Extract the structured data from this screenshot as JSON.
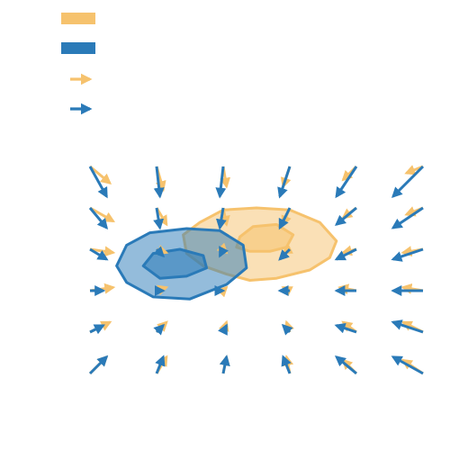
{
  "chart_data": {
    "type": "quiver",
    "title": "",
    "xlabel": "",
    "ylabel": "",
    "grid": false,
    "axes_visible": false,
    "xlim": [
      0,
      5
    ],
    "ylim": [
      0,
      5
    ],
    "legend": {
      "placement": "top-left",
      "entries": [
        {
          "kind": "patch",
          "color": "#f6c26d",
          "label": ""
        },
        {
          "kind": "patch",
          "color": "#2a7ab8",
          "label": ""
        },
        {
          "kind": "arrow",
          "color": "#f6c26d",
          "label": ""
        },
        {
          "kind": "arrow",
          "color": "#2a7ab8",
          "label": ""
        }
      ]
    },
    "grid_points": {
      "x": [
        0,
        1,
        2,
        3,
        4,
        5
      ],
      "y": [
        0,
        1,
        2,
        3,
        4,
        5
      ]
    },
    "series": [
      {
        "color": "#f6c26d",
        "kind": "quiver",
        "vectors": [
          {
            "x": 0,
            "y": 5,
            "u": 0.3,
            "v": -0.25
          },
          {
            "x": 1,
            "y": 5,
            "u": 0.1,
            "v": -0.35
          },
          {
            "x": 2,
            "y": 5,
            "u": 0.05,
            "v": -0.3
          },
          {
            "x": 3,
            "y": 5,
            "u": -0.1,
            "v": -0.3
          },
          {
            "x": 4,
            "y": 5,
            "u": -0.2,
            "v": -0.2
          },
          {
            "x": 5,
            "y": 5,
            "u": -0.25,
            "v": -0.1
          },
          {
            "x": 0,
            "y": 4,
            "u": 0.35,
            "v": -0.2
          },
          {
            "x": 1,
            "y": 4,
            "u": 0.15,
            "v": -0.25
          },
          {
            "x": 2,
            "y": 4,
            "u": 0.05,
            "v": -0.25
          },
          {
            "x": 3,
            "y": 4,
            "u": -0.1,
            "v": -0.25
          },
          {
            "x": 4,
            "y": 4,
            "u": -0.2,
            "v": -0.15
          },
          {
            "x": 5,
            "y": 4,
            "u": -0.25,
            "v": -0.1
          },
          {
            "x": 0,
            "y": 3,
            "u": 0.35,
            "v": -0.05
          },
          {
            "x": 1,
            "y": 3,
            "u": 0.15,
            "v": -0.05
          },
          {
            "x": 2,
            "y": 3,
            "u": 0.05,
            "v": -0.05
          },
          {
            "x": 3,
            "y": 3,
            "u": -0.1,
            "v": -0.05
          },
          {
            "x": 4,
            "y": 3,
            "u": -0.2,
            "v": -0.05
          },
          {
            "x": 5,
            "y": 3,
            "u": -0.3,
            "v": -0.05
          },
          {
            "x": 0,
            "y": 2,
            "u": 0.35,
            "v": 0.05
          },
          {
            "x": 1,
            "y": 2,
            "u": 0.15,
            "v": 0.05
          },
          {
            "x": 2,
            "y": 2,
            "u": 0.05,
            "v": 0.05
          },
          {
            "x": 3,
            "y": 2,
            "u": -0.1,
            "v": 0.05
          },
          {
            "x": 4,
            "y": 2,
            "u": -0.25,
            "v": 0.05
          },
          {
            "x": 5,
            "y": 2,
            "u": -0.3,
            "v": 0.05
          },
          {
            "x": 0,
            "y": 1,
            "u": 0.3,
            "v": 0.15
          },
          {
            "x": 1,
            "y": 1,
            "u": 0.15,
            "v": 0.15
          },
          {
            "x": 2,
            "y": 1,
            "u": 0.05,
            "v": 0.15
          },
          {
            "x": 3,
            "y": 1,
            "u": -0.05,
            "v": 0.15
          },
          {
            "x": 4,
            "y": 1,
            "u": -0.2,
            "v": 0.15
          },
          {
            "x": 5,
            "y": 1,
            "u": -0.3,
            "v": 0.15
          },
          {
            "x": 0,
            "y": 0,
            "u": 0.25,
            "v": 0.25
          },
          {
            "x": 1,
            "y": 0,
            "u": 0.15,
            "v": 0.25
          },
          {
            "x": 2,
            "y": 0,
            "u": 0.05,
            "v": 0.25
          },
          {
            "x": 3,
            "y": 0,
            "u": -0.05,
            "v": 0.25
          },
          {
            "x": 4,
            "y": 0,
            "u": -0.2,
            "v": 0.2
          },
          {
            "x": 5,
            "y": 0,
            "u": -0.3,
            "v": 0.2
          }
        ]
      },
      {
        "color": "#2a7ab8",
        "kind": "quiver",
        "vectors": [
          {
            "x": 0,
            "y": 5,
            "u": 0.25,
            "v": -0.45
          },
          {
            "x": 1,
            "y": 5,
            "u": 0.05,
            "v": -0.45
          },
          {
            "x": 2,
            "y": 5,
            "u": -0.05,
            "v": -0.45
          },
          {
            "x": 3,
            "y": 5,
            "u": -0.15,
            "v": -0.45
          },
          {
            "x": 4,
            "y": 5,
            "u": -0.3,
            "v": -0.45
          },
          {
            "x": 5,
            "y": 5,
            "u": -0.45,
            "v": -0.45
          },
          {
            "x": 0,
            "y": 4,
            "u": 0.25,
            "v": -0.3
          },
          {
            "x": 1,
            "y": 4,
            "u": 0.05,
            "v": -0.3
          },
          {
            "x": 2,
            "y": 4,
            "u": -0.05,
            "v": -0.3
          },
          {
            "x": 3,
            "y": 4,
            "u": -0.15,
            "v": -0.3
          },
          {
            "x": 4,
            "y": 4,
            "u": -0.3,
            "v": -0.25
          },
          {
            "x": 5,
            "y": 4,
            "u": -0.45,
            "v": -0.3
          },
          {
            "x": 0,
            "y": 3,
            "u": 0.25,
            "v": -0.15
          },
          {
            "x": 1,
            "y": 3,
            "u": 0.1,
            "v": -0.1
          },
          {
            "x": 2,
            "y": 3,
            "u": -0.05,
            "v": -0.1
          },
          {
            "x": 3,
            "y": 3,
            "u": -0.15,
            "v": -0.15
          },
          {
            "x": 4,
            "y": 3,
            "u": -0.3,
            "v": -0.15
          },
          {
            "x": 5,
            "y": 3,
            "u": -0.45,
            "v": -0.15
          },
          {
            "x": 0,
            "y": 2,
            "u": 0.2,
            "v": 0.0
          },
          {
            "x": 1,
            "y": 2,
            "u": 0.1,
            "v": 0.0
          },
          {
            "x": 2,
            "y": 2,
            "u": 0.0,
            "v": 0.0
          },
          {
            "x": 3,
            "y": 2,
            "u": -0.15,
            "v": 0.0
          },
          {
            "x": 4,
            "y": 2,
            "u": -0.3,
            "v": 0.0
          },
          {
            "x": 5,
            "y": 2,
            "u": -0.45,
            "v": 0.0
          },
          {
            "x": 0,
            "y": 1,
            "u": 0.2,
            "v": 0.1
          },
          {
            "x": 1,
            "y": 1,
            "u": 0.1,
            "v": 0.1
          },
          {
            "x": 2,
            "y": 1,
            "u": 0.05,
            "v": 0.1
          },
          {
            "x": 3,
            "y": 1,
            "u": -0.1,
            "v": 0.1
          },
          {
            "x": 4,
            "y": 1,
            "u": -0.3,
            "v": 0.1
          },
          {
            "x": 5,
            "y": 1,
            "u": -0.45,
            "v": 0.15
          },
          {
            "x": 0,
            "y": 0,
            "u": 0.25,
            "v": 0.25
          },
          {
            "x": 1,
            "y": 0,
            "u": 0.1,
            "v": 0.25
          },
          {
            "x": 2,
            "y": 0,
            "u": 0.05,
            "v": 0.25
          },
          {
            "x": 3,
            "y": 0,
            "u": -0.1,
            "v": 0.25
          },
          {
            "x": 4,
            "y": 0,
            "u": -0.3,
            "v": 0.25
          },
          {
            "x": 5,
            "y": 0,
            "u": -0.45,
            "v": 0.25
          }
        ]
      },
      {
        "color": "#f6c26d",
        "kind": "contour",
        "outer": [
          [
            1.4,
            3.35
          ],
          [
            1.65,
            3.65
          ],
          [
            2.0,
            3.95
          ],
          [
            2.5,
            4.0
          ],
          [
            3.0,
            3.95
          ],
          [
            3.45,
            3.65
          ],
          [
            3.7,
            3.2
          ],
          [
            3.6,
            2.8
          ],
          [
            3.3,
            2.5
          ],
          [
            2.8,
            2.3
          ],
          [
            2.4,
            2.25
          ],
          [
            2.05,
            2.4
          ],
          [
            1.7,
            2.6
          ],
          [
            1.45,
            2.9
          ],
          [
            1.4,
            3.35
          ]
        ],
        "inner": [
          [
            2.25,
            3.3
          ],
          [
            2.45,
            3.55
          ],
          [
            2.8,
            3.6
          ],
          [
            3.05,
            3.35
          ],
          [
            2.95,
            3.05
          ],
          [
            2.7,
            2.95
          ],
          [
            2.4,
            2.95
          ],
          [
            2.2,
            3.05
          ],
          [
            2.25,
            3.3
          ]
        ]
      },
      {
        "color": "#2a7ab8",
        "kind": "contour",
        "outer": [
          [
            0.55,
            3.1
          ],
          [
            0.9,
            3.4
          ],
          [
            1.45,
            3.5
          ],
          [
            1.95,
            3.45
          ],
          [
            2.3,
            3.1
          ],
          [
            2.35,
            2.55
          ],
          [
            2.05,
            2.15
          ],
          [
            1.5,
            1.8
          ],
          [
            0.95,
            1.85
          ],
          [
            0.55,
            2.2
          ],
          [
            0.4,
            2.6
          ],
          [
            0.55,
            3.1
          ]
        ],
        "inner": [
          [
            0.8,
            2.6
          ],
          [
            0.95,
            2.9
          ],
          [
            1.35,
            3.0
          ],
          [
            1.7,
            2.85
          ],
          [
            1.75,
            2.55
          ],
          [
            1.45,
            2.35
          ],
          [
            1.05,
            2.3
          ],
          [
            0.8,
            2.6
          ]
        ]
      }
    ]
  }
}
